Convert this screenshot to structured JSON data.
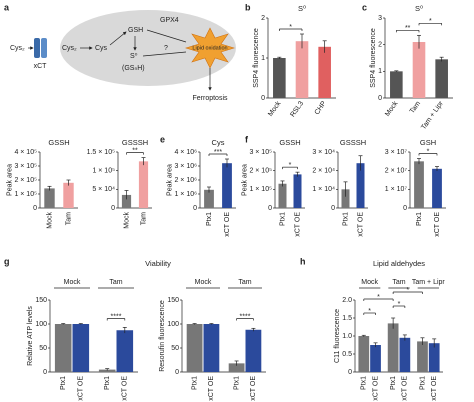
{
  "diagram": {
    "panel": "a",
    "labels": {
      "cys2_out": "Cys₂",
      "xct": "xCT",
      "cys2_in": "Cys₂",
      "cys": "Cys",
      "gsh": "GSH",
      "gpx4": "GPX4",
      "s0": "S⁰",
      "gsnh": "(GSₙH)",
      "question": "?",
      "lipid": "Lipid oxidation",
      "ferroptosis": "Ferroptosis"
    }
  },
  "chart_data": [
    {
      "type": "bar",
      "panel": "b",
      "title": "S⁰",
      "ylabel": "SSP4 fluorescence",
      "categories": [
        "Mock",
        "RSL3",
        "CHP"
      ],
      "values": [
        1.0,
        1.42,
        1.28
      ],
      "errors": [
        0.02,
        0.18,
        0.15
      ],
      "colors": [
        "#555555",
        "#f0a0a0",
        "#e06060"
      ],
      "ylim": [
        0,
        2
      ],
      "yticks": [
        0,
        1,
        2
      ],
      "annotations": [
        {
          "text": "*",
          "between": [
            "Mock",
            "RSL3"
          ]
        }
      ]
    },
    {
      "type": "bar",
      "panel": "c",
      "title": "S⁰",
      "ylabel": "SSP4 fluorescence",
      "categories": [
        "Mock",
        "Tam",
        "Tam + Lipr"
      ],
      "values": [
        1.0,
        2.1,
        1.45
      ],
      "errors": [
        0.02,
        0.25,
        0.08
      ],
      "colors": [
        "#555555",
        "#f0a0a0",
        "#555555"
      ],
      "ylim": [
        0,
        3
      ],
      "yticks": [
        0,
        1,
        2,
        3
      ],
      "annotations": [
        {
          "text": "**",
          "between": [
            "Mock",
            "Tam"
          ]
        },
        {
          "text": "*",
          "between": [
            "Tam",
            "Tam + Lipr"
          ]
        }
      ]
    },
    {
      "type": "bar",
      "panel": "d",
      "title": "GSSH",
      "ylabel": "Peak area",
      "categories": [
        "Mock",
        "Tam"
      ],
      "values": [
        140000,
        180000
      ],
      "errors": [
        15000,
        20000
      ],
      "colors": [
        "#777777",
        "#f0a0a0"
      ],
      "ylim": [
        0,
        400000
      ],
      "yticks": [
        0,
        {
          "value": 100000,
          "label": "1 × 10⁵"
        },
        {
          "value": 200000,
          "label": "2 × 10⁵"
        },
        {
          "value": 300000,
          "label": "3 × 10⁵"
        },
        {
          "value": 400000,
          "label": "4 × 10⁵"
        }
      ],
      "annotations": []
    },
    {
      "type": "bar",
      "title": "GSSSH",
      "categories": [
        "Mock",
        "Tam"
      ],
      "values": [
        35000,
        125000
      ],
      "errors": [
        12000,
        10000
      ],
      "colors": [
        "#777777",
        "#f0a0a0"
      ],
      "ylim": [
        0,
        150000
      ],
      "yticks": [
        0,
        {
          "value": 50000,
          "label": "5 × 10⁴"
        },
        {
          "value": 100000,
          "label": "1 × 10⁵"
        },
        {
          "value": 150000,
          "label": "1.5 × 10⁵"
        }
      ],
      "annotations": [
        {
          "text": "**",
          "between": [
            "Mock",
            "Tam"
          ]
        }
      ]
    },
    {
      "type": "bar",
      "panel": "e",
      "title": "Cys",
      "ylabel": "Peak area",
      "categories": [
        "Ptx1",
        "xCT OE"
      ],
      "values": [
        1300000,
        3200000
      ],
      "errors": [
        200000,
        300000
      ],
      "colors": [
        "#777777",
        "#2b4a9c"
      ],
      "ylim": [
        0,
        4000000
      ],
      "yticks": [
        0,
        {
          "value": 1000000,
          "label": "1 × 10⁶"
        },
        {
          "value": 2000000,
          "label": "2 × 10⁶"
        },
        {
          "value": 3000000,
          "label": "3 × 10⁶"
        },
        {
          "value": 4000000,
          "label": "4 × 10⁶"
        }
      ],
      "annotations": [
        {
          "text": "***",
          "between": [
            "Ptx1",
            "xCT OE"
          ]
        }
      ]
    },
    {
      "type": "bar",
      "panel": "f",
      "title": "GSSH",
      "ylabel": "Peak area",
      "categories": [
        "Ptx1",
        "xCT OE"
      ],
      "values": [
        130000,
        180000
      ],
      "errors": [
        15000,
        12000
      ],
      "colors": [
        "#777777",
        "#2b4a9c"
      ],
      "ylim": [
        0,
        300000
      ],
      "yticks": [
        0,
        {
          "value": 100000,
          "label": "1 × 10⁵"
        },
        {
          "value": 200000,
          "label": "2 × 10⁵"
        },
        {
          "value": 300000,
          "label": "3 × 10⁵"
        }
      ],
      "annotations": [
        {
          "text": "*",
          "between": [
            "Ptx1",
            "xCT OE"
          ]
        }
      ]
    },
    {
      "type": "bar",
      "title": "GSSSH",
      "categories": [
        "Ptx1",
        "xCT OE"
      ],
      "values": [
        10000,
        24000
      ],
      "errors": [
        4000,
        4000
      ],
      "colors": [
        "#777777",
        "#2b4a9c"
      ],
      "ylim": [
        0,
        30000
      ],
      "yticks": [
        0,
        {
          "value": 10000,
          "label": "1 × 10⁴"
        },
        {
          "value": 20000,
          "label": "2 × 10⁴"
        },
        {
          "value": 30000,
          "label": "3 × 10⁴"
        }
      ],
      "annotations": []
    },
    {
      "type": "bar",
      "title": "GSH",
      "categories": [
        "Ptx1",
        "xCT OE"
      ],
      "values": [
        25000000,
        21000000
      ],
      "errors": [
        1500000,
        1200000
      ],
      "colors": [
        "#777777",
        "#2b4a9c"
      ],
      "ylim": [
        0,
        30000000
      ],
      "yticks": [
        0,
        {
          "value": 10000000,
          "label": "1 × 10⁷"
        },
        {
          "value": 20000000,
          "label": "2 × 10⁷"
        },
        {
          "value": 30000000,
          "label": "3 × 10⁷"
        }
      ],
      "annotations": [
        {
          "text": "*",
          "between": [
            "Ptx1",
            "xCT OE"
          ]
        }
      ]
    },
    {
      "type": "bar",
      "panel": "g",
      "suptitle": "Viability",
      "ylabel": "Relative ATP levels",
      "categories": [
        "Mock",
        "Tam"
      ],
      "series": [
        {
          "name": "Ptx1",
          "color": "#777777",
          "values": [
            100,
            5
          ],
          "errors": [
            1,
            2
          ]
        },
        {
          "name": "xCT OE",
          "color": "#2b4a9c",
          "values": [
            100,
            87
          ],
          "errors": [
            1,
            6
          ]
        }
      ],
      "ylim": [
        0,
        150
      ],
      "yticks": [
        0,
        50,
        100,
        150
      ],
      "annotations": [
        {
          "text": "****",
          "between": [
            [
              "Tam",
              "Ptx1"
            ],
            [
              "Tam",
              "xCT OE"
            ]
          ]
        }
      ]
    },
    {
      "type": "bar",
      "ylabel": "Resorufin fluorescence",
      "categories": [
        "Mock",
        "Tam"
      ],
      "series": [
        {
          "name": "Ptx1",
          "color": "#777777",
          "values": [
            100,
            18
          ],
          "errors": [
            1,
            5
          ]
        },
        {
          "name": "xCT OE",
          "color": "#2b4a9c",
          "values": [
            100,
            88
          ],
          "errors": [
            1,
            3
          ]
        }
      ],
      "ylim": [
        0,
        150
      ],
      "yticks": [
        0,
        50,
        100,
        150
      ],
      "annotations": [
        {
          "text": "****",
          "between": [
            [
              "Tam",
              "Ptx1"
            ],
            [
              "Tam",
              "xCT OE"
            ]
          ]
        }
      ]
    },
    {
      "type": "bar",
      "panel": "h",
      "title": "Lipid aldehydes",
      "ylabel": "C11 fluorescence",
      "categories": [
        "Mock",
        "Tam",
        "Tam + Lipr"
      ],
      "series": [
        {
          "name": "Ptx1",
          "color": "#777777",
          "values": [
            1.0,
            1.35,
            0.85
          ],
          "errors": [
            0.02,
            0.15,
            0.1
          ]
        },
        {
          "name": "xCT OE",
          "color": "#2b4a9c",
          "values": [
            0.75,
            0.95,
            0.8
          ],
          "errors": [
            0.06,
            0.08,
            0.12
          ]
        }
      ],
      "ylim": [
        0,
        2
      ],
      "yticks": [
        0,
        0.5,
        {
          "value": 1,
          "label": "1.0"
        },
        1.5,
        {
          "value": 2,
          "label": "2.0"
        }
      ],
      "annotations": [
        {
          "text": "*",
          "between": [
            [
              "Mock",
              "Ptx1"
            ],
            [
              "Mock",
              "xCT OE"
            ]
          ]
        },
        {
          "text": "*",
          "between": [
            [
              "Tam",
              "Ptx1"
            ],
            [
              "Tam",
              "xCT OE"
            ]
          ]
        },
        {
          "text": "*",
          "between": [
            [
              "Mock",
              "Ptx1"
            ],
            [
              "Tam",
              "Ptx1"
            ]
          ]
        },
        {
          "text": "*",
          "between": [
            [
              "Tam",
              "Ptx1"
            ],
            [
              "Tam + Lipr",
              "Ptx1"
            ]
          ]
        }
      ]
    }
  ]
}
